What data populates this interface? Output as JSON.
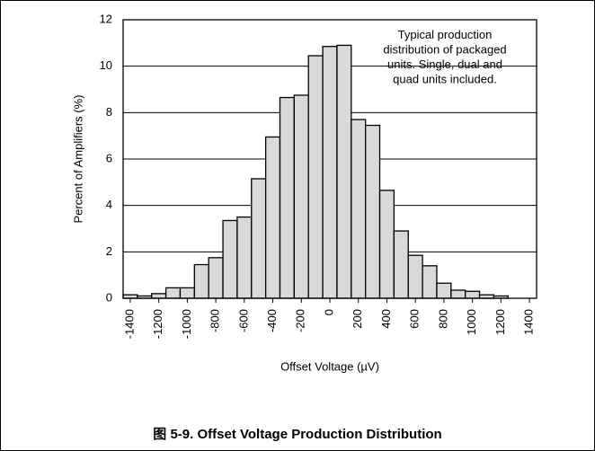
{
  "chart_data": {
    "type": "histogram",
    "x_label": "Offset Voltage (µV)",
    "y_label": "Percent of Amplifiers (%)",
    "annotation": [
      "Typical production",
      "distribution of packaged",
      "units. Single, dual and",
      "quad units included."
    ],
    "caption": "图 5-9. Offset Voltage Production Distribution",
    "bins": [
      -1450,
      -1350,
      -1250,
      -1150,
      -1050,
      -950,
      -850,
      -750,
      -650,
      -550,
      -450,
      -350,
      -250,
      -150,
      -50,
      50,
      150,
      250,
      350,
      450,
      550,
      650,
      750,
      850,
      950,
      1050,
      1150,
      1250,
      1350,
      1450
    ],
    "values": [
      0.15,
      0.1,
      0.2,
      0.45,
      0.45,
      1.45,
      1.75,
      3.35,
      3.5,
      5.15,
      6.95,
      8.65,
      8.75,
      10.45,
      10.85,
      10.9,
      7.7,
      7.45,
      4.65,
      2.9,
      1.85,
      1.4,
      0.65,
      0.35,
      0.3,
      0.15,
      0.1,
      0,
      0
    ],
    "color": "#d9d9d9",
    "xlim": [
      -1450,
      1450
    ],
    "xticks": [
      -1400,
      -1200,
      -1000,
      -800,
      -600,
      -400,
      -200,
      0,
      200,
      400,
      600,
      800,
      1000,
      1200,
      1400
    ],
    "ylim": [
      0,
      12
    ],
    "yticks": [
      0,
      2,
      4,
      6,
      8,
      10,
      12
    ],
    "grid": true
  }
}
